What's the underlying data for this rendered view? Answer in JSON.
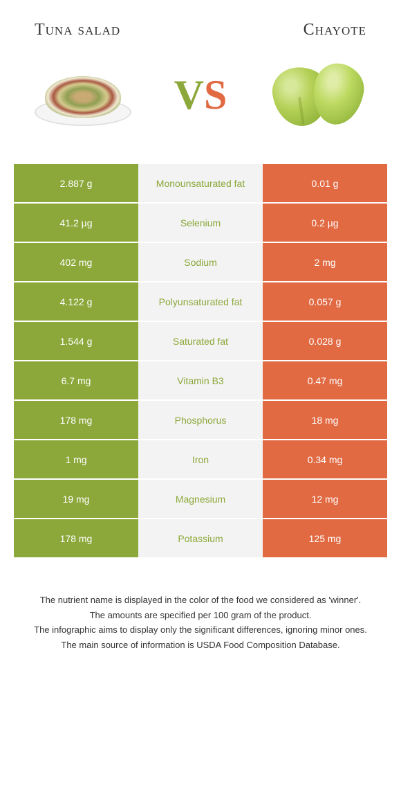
{
  "header": {
    "left_title": "Tuna salad",
    "right_title": "Chayote"
  },
  "vs": {
    "v": "V",
    "s": "S"
  },
  "colors": {
    "left_color": "#8ca83a",
    "right_color": "#e16a43",
    "mid_bg": "#f3f3f3",
    "mid_text": "#8ca83a"
  },
  "rows": [
    {
      "left": "2.887 g",
      "label": "Monounsaturated fat",
      "right": "0.01 g"
    },
    {
      "left": "41.2 µg",
      "label": "Selenium",
      "right": "0.2 µg"
    },
    {
      "left": "402 mg",
      "label": "Sodium",
      "right": "2 mg"
    },
    {
      "left": "4.122 g",
      "label": "Polyunsaturated fat",
      "right": "0.057 g"
    },
    {
      "left": "1.544 g",
      "label": "Saturated fat",
      "right": "0.028 g"
    },
    {
      "left": "6.7 mg",
      "label": "Vitamin B3",
      "right": "0.47 mg"
    },
    {
      "left": "178 mg",
      "label": "Phosphorus",
      "right": "18 mg"
    },
    {
      "left": "1 mg",
      "label": "Iron",
      "right": "0.34 mg"
    },
    {
      "left": "19 mg",
      "label": "Magnesium",
      "right": "12 mg"
    },
    {
      "left": "178 mg",
      "label": "Potassium",
      "right": "125 mg"
    }
  ],
  "footer": {
    "line1": "The nutrient name is displayed in the color of the food we considered as 'winner'.",
    "line2": "The amounts are specified per 100 gram of the product.",
    "line3": "The infographic aims to display only the significant differences, ignoring minor ones.",
    "line4": "The main source of information is USDA Food Composition Database."
  }
}
